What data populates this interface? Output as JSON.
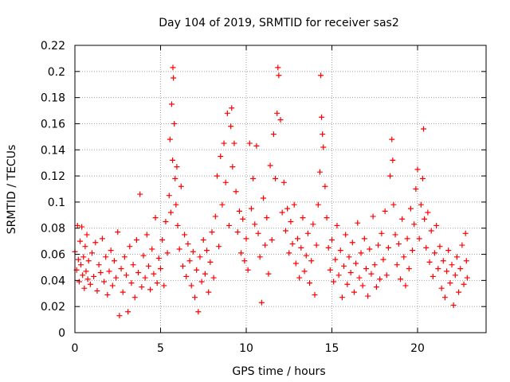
{
  "chart_data": {
    "type": "scatter",
    "title": "Day 104 of 2019, SRMTID for receiver sas2",
    "xlabel": "GPS time / hours",
    "ylabel": "SRMTID / TECUs",
    "xlim": [
      0,
      24
    ],
    "ylim": [
      0,
      0.22
    ],
    "xticks": [
      0,
      5,
      10,
      15,
      20
    ],
    "xtick_labels": [
      "0",
      "5",
      "10",
      "15",
      "20"
    ],
    "yticks": [
      0,
      0.02,
      0.04,
      0.06,
      0.08,
      0.1,
      0.12,
      0.14,
      0.16,
      0.18,
      0.2,
      0.22
    ],
    "ytick_labels": [
      "0",
      "0.02",
      "0.04",
      "0.06",
      "0.08",
      "0.1",
      "0.12",
      "0.14",
      "0.16",
      "0.18",
      "0.2",
      "0.22"
    ],
    "grid": true,
    "marker": "+",
    "marker_color": "#ff0000",
    "series": [
      {
        "name": "SRMTID",
        "points": [
          [
            0.0,
            0.062
          ],
          [
            0.1,
            0.048
          ],
          [
            0.15,
            0.082
          ],
          [
            0.2,
            0.056
          ],
          [
            0.25,
            0.039
          ],
          [
            0.3,
            0.07
          ],
          [
            0.35,
            0.052
          ],
          [
            0.4,
            0.081
          ],
          [
            0.45,
            0.044
          ],
          [
            0.5,
            0.058
          ],
          [
            0.55,
            0.034
          ],
          [
            0.6,
            0.066
          ],
          [
            0.65,
            0.047
          ],
          [
            0.7,
            0.075
          ],
          [
            0.75,
            0.041
          ],
          [
            0.8,
            0.055
          ],
          [
            0.9,
            0.037
          ],
          [
            1.0,
            0.061
          ],
          [
            1.1,
            0.043
          ],
          [
            1.2,
            0.069
          ],
          [
            1.3,
            0.032
          ],
          [
            1.4,
            0.052
          ],
          [
            1.5,
            0.046
          ],
          [
            1.6,
            0.072
          ],
          [
            1.7,
            0.039
          ],
          [
            1.8,
            0.058
          ],
          [
            1.9,
            0.029
          ],
          [
            2.0,
            0.047
          ],
          [
            2.1,
            0.063
          ],
          [
            2.2,
            0.036
          ],
          [
            2.3,
            0.055
          ],
          [
            2.4,
            0.042
          ],
          [
            2.5,
            0.077
          ],
          [
            2.6,
            0.013
          ],
          [
            2.7,
            0.049
          ],
          [
            2.8,
            0.031
          ],
          [
            2.9,
            0.058
          ],
          [
            3.0,
            0.044
          ],
          [
            3.1,
            0.016
          ],
          [
            3.2,
            0.066
          ],
          [
            3.3,
            0.038
          ],
          [
            3.4,
            0.052
          ],
          [
            3.5,
            0.027
          ],
          [
            3.6,
            0.071
          ],
          [
            3.7,
            0.046
          ],
          [
            3.8,
            0.106
          ],
          [
            3.9,
            0.035
          ],
          [
            4.0,
            0.059
          ],
          [
            4.1,
            0.042
          ],
          [
            4.2,
            0.075
          ],
          [
            4.3,
            0.051
          ],
          [
            4.4,
            0.033
          ],
          [
            4.5,
            0.064
          ],
          [
            4.6,
            0.045
          ],
          [
            4.7,
            0.088
          ],
          [
            4.8,
            0.038
          ],
          [
            4.9,
            0.057
          ],
          [
            5.0,
            0.049
          ],
          [
            5.1,
            0.071
          ],
          [
            5.2,
            0.036
          ],
          [
            5.3,
            0.085
          ],
          [
            5.4,
            0.061
          ],
          [
            5.5,
            0.105
          ],
          [
            5.55,
            0.148
          ],
          [
            5.6,
            0.092
          ],
          [
            5.65,
            0.175
          ],
          [
            5.7,
            0.132
          ],
          [
            5.72,
            0.203
          ],
          [
            5.75,
            0.195
          ],
          [
            5.8,
            0.16
          ],
          [
            5.85,
            0.118
          ],
          [
            5.9,
            0.098
          ],
          [
            5.95,
            0.127
          ],
          [
            6.0,
            0.082
          ],
          [
            6.1,
            0.064
          ],
          [
            6.2,
            0.112
          ],
          [
            6.3,
            0.051
          ],
          [
            6.4,
            0.075
          ],
          [
            6.5,
            0.043
          ],
          [
            6.6,
            0.068
          ],
          [
            6.7,
            0.055
          ],
          [
            6.8,
            0.036
          ],
          [
            6.9,
            0.062
          ],
          [
            7.0,
            0.027
          ],
          [
            7.1,
            0.048
          ],
          [
            7.2,
            0.016
          ],
          [
            7.3,
            0.058
          ],
          [
            7.4,
            0.039
          ],
          [
            7.5,
            0.071
          ],
          [
            7.6,
            0.045
          ],
          [
            7.7,
            0.063
          ],
          [
            7.8,
            0.031
          ],
          [
            7.9,
            0.054
          ],
          [
            8.0,
            0.077
          ],
          [
            8.1,
            0.042
          ],
          [
            8.2,
            0.089
          ],
          [
            8.3,
            0.12
          ],
          [
            8.4,
            0.066
          ],
          [
            8.5,
            0.135
          ],
          [
            8.6,
            0.098
          ],
          [
            8.7,
            0.145
          ],
          [
            8.8,
            0.115
          ],
          [
            8.9,
            0.168
          ],
          [
            9.0,
            0.082
          ],
          [
            9.1,
            0.158
          ],
          [
            9.15,
            0.172
          ],
          [
            9.2,
            0.127
          ],
          [
            9.3,
            0.145
          ],
          [
            9.4,
            0.108
          ],
          [
            9.5,
            0.077
          ],
          [
            9.6,
            0.093
          ],
          [
            9.7,
            0.061
          ],
          [
            9.8,
            0.087
          ],
          [
            9.9,
            0.055
          ],
          [
            10.0,
            0.072
          ],
          [
            10.1,
            0.048
          ],
          [
            10.2,
            0.145
          ],
          [
            10.3,
            0.095
          ],
          [
            10.4,
            0.118
          ],
          [
            10.5,
            0.083
          ],
          [
            10.6,
            0.143
          ],
          [
            10.7,
            0.076
          ],
          [
            10.8,
            0.058
          ],
          [
            10.9,
            0.023
          ],
          [
            11.0,
            0.103
          ],
          [
            11.1,
            0.067
          ],
          [
            11.2,
            0.088
          ],
          [
            11.3,
            0.045
          ],
          [
            11.4,
            0.128
          ],
          [
            11.5,
            0.071
          ],
          [
            11.6,
            0.152
          ],
          [
            11.7,
            0.118
          ],
          [
            11.8,
            0.168
          ],
          [
            11.85,
            0.203
          ],
          [
            11.9,
            0.197
          ],
          [
            12.0,
            0.163
          ],
          [
            12.1,
            0.092
          ],
          [
            12.2,
            0.115
          ],
          [
            12.3,
            0.078
          ],
          [
            12.4,
            0.095
          ],
          [
            12.5,
            0.061
          ],
          [
            12.6,
            0.085
          ],
          [
            12.7,
            0.068
          ],
          [
            12.8,
            0.098
          ],
          [
            12.9,
            0.053
          ],
          [
            13.0,
            0.072
          ],
          [
            13.1,
            0.042
          ],
          [
            13.2,
            0.065
          ],
          [
            13.3,
            0.088
          ],
          [
            13.4,
            0.047
          ],
          [
            13.5,
            0.059
          ],
          [
            13.6,
            0.076
          ],
          [
            13.7,
            0.038
          ],
          [
            13.8,
            0.055
          ],
          [
            13.9,
            0.083
          ],
          [
            14.0,
            0.029
          ],
          [
            14.1,
            0.067
          ],
          [
            14.2,
            0.098
          ],
          [
            14.3,
            0.123
          ],
          [
            14.35,
            0.197
          ],
          [
            14.4,
            0.165
          ],
          [
            14.45,
            0.152
          ],
          [
            14.5,
            0.142
          ],
          [
            14.6,
            0.112
          ],
          [
            14.7,
            0.088
          ],
          [
            14.8,
            0.065
          ],
          [
            14.9,
            0.048
          ],
          [
            15.0,
            0.071
          ],
          [
            15.1,
            0.039
          ],
          [
            15.2,
            0.056
          ],
          [
            15.3,
            0.082
          ],
          [
            15.4,
            0.044
          ],
          [
            15.5,
            0.063
          ],
          [
            15.6,
            0.027
          ],
          [
            15.7,
            0.051
          ],
          [
            15.8,
            0.075
          ],
          [
            15.9,
            0.037
          ],
          [
            16.0,
            0.058
          ],
          [
            16.1,
            0.046
          ],
          [
            16.2,
            0.069
          ],
          [
            16.3,
            0.031
          ],
          [
            16.4,
            0.053
          ],
          [
            16.5,
            0.084
          ],
          [
            16.6,
            0.042
          ],
          [
            16.7,
            0.061
          ],
          [
            16.8,
            0.036
          ],
          [
            16.9,
            0.072
          ],
          [
            17.0,
            0.049
          ],
          [
            17.1,
            0.028
          ],
          [
            17.2,
            0.064
          ],
          [
            17.3,
            0.045
          ],
          [
            17.4,
            0.089
          ],
          [
            17.5,
            0.052
          ],
          [
            17.6,
            0.035
          ],
          [
            17.7,
            0.067
          ],
          [
            17.8,
            0.041
          ],
          [
            17.9,
            0.076
          ],
          [
            18.0,
            0.056
          ],
          [
            18.1,
            0.093
          ],
          [
            18.2,
            0.044
          ],
          [
            18.3,
            0.065
          ],
          [
            18.4,
            0.12
          ],
          [
            18.5,
            0.148
          ],
          [
            18.55,
            0.132
          ],
          [
            18.6,
            0.098
          ],
          [
            18.7,
            0.075
          ],
          [
            18.8,
            0.052
          ],
          [
            18.9,
            0.068
          ],
          [
            19.0,
            0.041
          ],
          [
            19.1,
            0.087
          ],
          [
            19.2,
            0.058
          ],
          [
            19.3,
            0.036
          ],
          [
            19.4,
            0.072
          ],
          [
            19.5,
            0.049
          ],
          [
            19.6,
            0.095
          ],
          [
            19.7,
            0.063
          ],
          [
            19.8,
            0.083
          ],
          [
            19.9,
            0.11
          ],
          [
            20.0,
            0.125
          ],
          [
            20.1,
            0.072
          ],
          [
            20.2,
            0.098
          ],
          [
            20.3,
            0.118
          ],
          [
            20.35,
            0.156
          ],
          [
            20.4,
            0.087
          ],
          [
            20.5,
            0.065
          ],
          [
            20.6,
            0.092
          ],
          [
            20.7,
            0.054
          ],
          [
            20.8,
            0.078
          ],
          [
            20.9,
            0.043
          ],
          [
            21.0,
            0.061
          ],
          [
            21.1,
            0.082
          ],
          [
            21.2,
            0.049
          ],
          [
            21.3,
            0.066
          ],
          [
            21.4,
            0.034
          ],
          [
            21.5,
            0.055
          ],
          [
            21.6,
            0.027
          ],
          [
            21.7,
            0.047
          ],
          [
            21.8,
            0.063
          ],
          [
            21.9,
            0.038
          ],
          [
            22.0,
            0.052
          ],
          [
            22.1,
            0.021
          ],
          [
            22.2,
            0.044
          ],
          [
            22.3,
            0.058
          ],
          [
            22.4,
            0.031
          ],
          [
            22.5,
            0.049
          ],
          [
            22.6,
            0.067
          ],
          [
            22.7,
            0.037
          ],
          [
            22.8,
            0.076
          ],
          [
            22.85,
            0.055
          ],
          [
            22.9,
            0.042
          ]
        ]
      }
    ]
  }
}
